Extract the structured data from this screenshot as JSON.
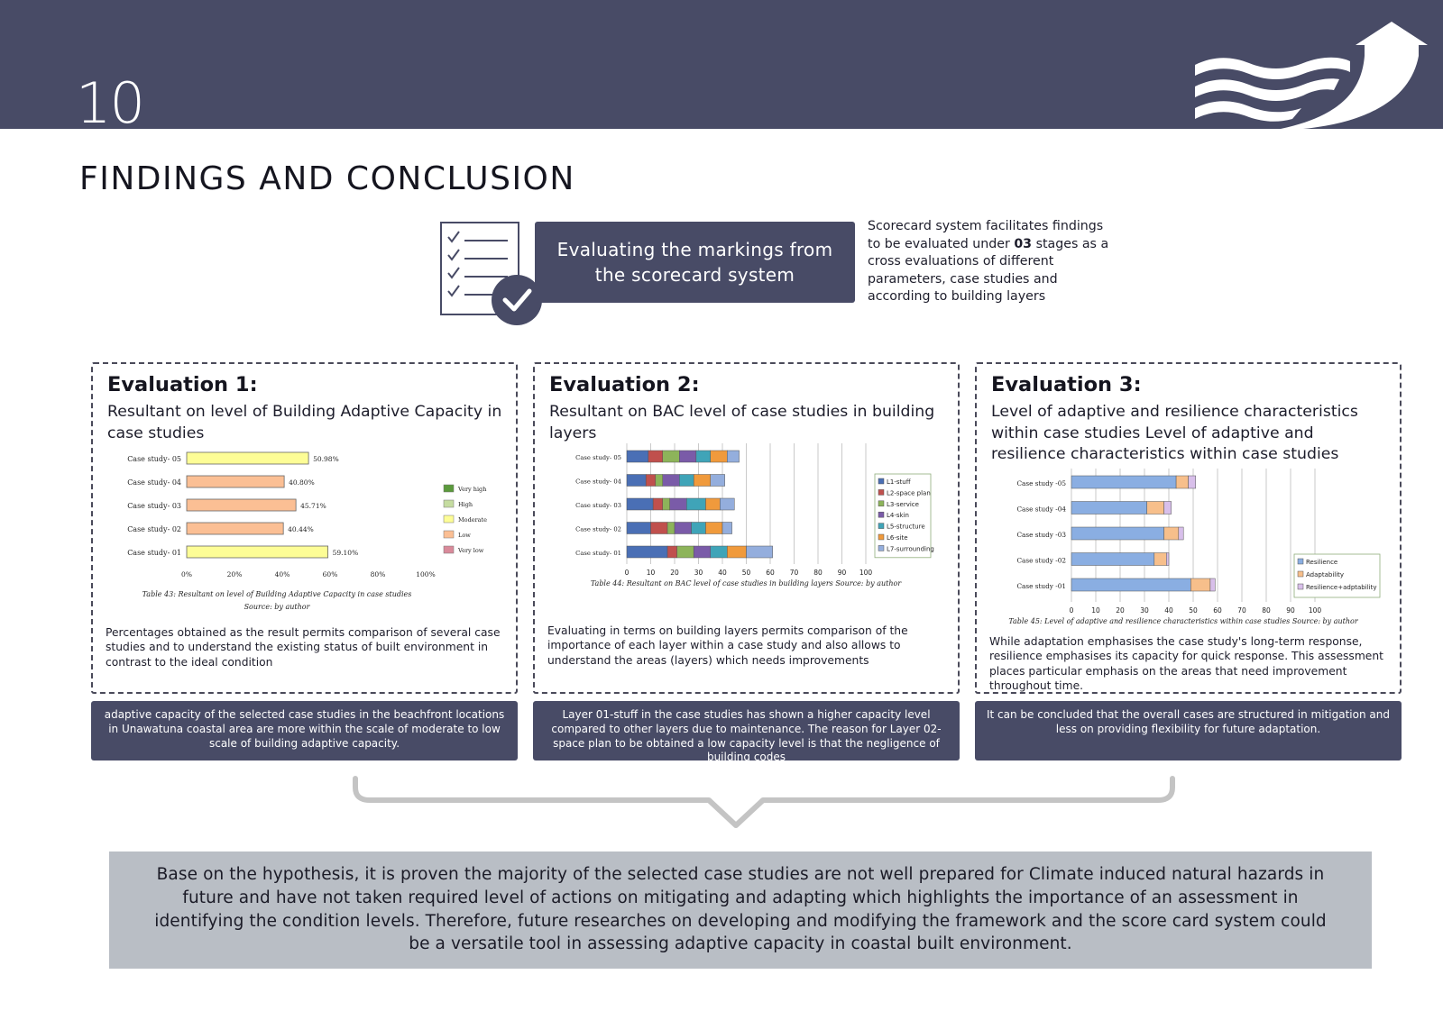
{
  "header": {
    "page_number": "10",
    "section_title": "FINDINGS AND CONCLUSION"
  },
  "intro": {
    "banner": "Evaluating the markings from the scorecard system",
    "note_pre": "Scorecard system facilitates findings to be evaluated under ",
    "note_bold": "03",
    "note_post": " stages as a cross evaluations of different parameters, case studies and according to building layers"
  },
  "evaluations": [
    {
      "title": "Evaluation 1:",
      "subtitle": "Resultant on level of Building Adaptive Capacity in case studies",
      "description": "Percentages obtained as the result permits comparison of several case studies and to understand the existing status of built environment in contrast to the ideal condition",
      "conclusion": "adaptive capacity of the selected case studies in the beachfront locations in Unawatuna coastal area are more within the scale of moderate to low scale of building adaptive capacity."
    },
    {
      "title": "Evaluation 2:",
      "subtitle": "Resultant on BAC level of case studies in building layers",
      "description": "Evaluating in terms on building layers permits comparison of the importance of each layer within a case study and also allows to understand the areas (layers) which needs improvements",
      "conclusion": "Layer 01-stuff in the case studies has shown a higher capacity level compared to other layers due to maintenance. The reason for Layer 02-space plan to be obtained a low capacity level is that the negligence of building codes"
    },
    {
      "title": "Evaluation 3:",
      "subtitle": "Level of adaptive and resilience characteristics within case studies Level of adaptive and resilience characteristics within case studies",
      "description": "While adaptation emphasises the case study's long-term response, resilience emphasises its capacity for quick response. This assessment places particular emphasis on the areas that need improvement throughout time.",
      "conclusion": "It can be concluded that the overall cases are structured in mitigation and less on providing flexibility for future adaptation."
    }
  ],
  "final_statement": "Base on the hypothesis, it is proven the majority of the selected case studies are not well prepared for Climate induced natural hazards in future and have not taken required level of actions on mitigating and adapting which highlights the importance of an assessment in identifying the condition levels. Therefore, future researches on developing and modifying the framework and the score card system could be a versatile tool in assessing adaptive capacity in coastal built environment.",
  "colors": {
    "navy": "#484b66",
    "panel_grey": "#b9bec5"
  },
  "chart_data": [
    {
      "type": "bar",
      "orientation": "horizontal",
      "categories": [
        "Case study- 05",
        "Case study- 04",
        "Case study- 03",
        "Case study- 02",
        "Case study- 01"
      ],
      "values": [
        50.98,
        40.8,
        45.71,
        40.44,
        59.1
      ],
      "value_labels": [
        "50.98%",
        "40.80%",
        "45.71%",
        "40.44%",
        "59.10%"
      ],
      "bar_levels": [
        "Moderate",
        "Low",
        "Low",
        "Low",
        "Moderate"
      ],
      "xlim": [
        0,
        100
      ],
      "x_ticks": [
        "0%",
        "20%",
        "40%",
        "60%",
        "80%",
        "100%"
      ],
      "legend": [
        {
          "label": "Very high",
          "color": "#5b9a3c"
        },
        {
          "label": "High",
          "color": "#c5dca0"
        },
        {
          "label": "Moderate",
          "color": "#fdfd96"
        },
        {
          "label": "Low",
          "color": "#fbbf94"
        },
        {
          "label": "Very low",
          "color": "#d98a9a"
        }
      ],
      "legend_position": "right",
      "caption_line1": "Table 43: Resultant on level of Building Adaptive Capacity in case studies",
      "caption_line2": "Source: by author"
    },
    {
      "type": "bar",
      "orientation": "horizontal-stacked",
      "categories": [
        "Case study- 05",
        "Case study- 04",
        "Case study- 03",
        "Case study- 02",
        "Case study- 01"
      ],
      "series": [
        {
          "name": "L1-stuff",
          "color": "#4a6fb5",
          "values": [
            9,
            8,
            11,
            10,
            17
          ]
        },
        {
          "name": "L2-space plan",
          "color": "#c0504d",
          "values": [
            6,
            4,
            4,
            7,
            4
          ]
        },
        {
          "name": "L3-service",
          "color": "#8db45a",
          "values": [
            7,
            3,
            3,
            3,
            7
          ]
        },
        {
          "name": "L4-skin",
          "color": "#7a5ba8",
          "values": [
            7,
            7,
            7,
            7,
            7
          ]
        },
        {
          "name": "L5-structure",
          "color": "#3fa4b8",
          "values": [
            6,
            6,
            8,
            6,
            7
          ]
        },
        {
          "name": "L6-site",
          "color": "#f09a3c",
          "values": [
            7,
            7,
            6,
            7,
            8
          ]
        },
        {
          "name": "L7-surrounding",
          "color": "#94aedd",
          "values": [
            5,
            6,
            6,
            4,
            11
          ]
        }
      ],
      "xlim": [
        0,
        100
      ],
      "x_ticks": [
        "0",
        "10",
        "20",
        "30",
        "40",
        "50",
        "60",
        "70",
        "80",
        "90",
        "100"
      ],
      "legend_position": "right",
      "caption": "Table 44: Resultant on BAC level of case studies in building layers Source: by author"
    },
    {
      "type": "bar",
      "orientation": "horizontal-stacked",
      "categories": [
        "Case study -05",
        "Case study -04",
        "Case study -03",
        "Case study -02",
        "Case study -01"
      ],
      "series": [
        {
          "name": "Resilience",
          "color": "#8aaee2",
          "values": [
            43,
            31,
            38,
            34,
            49
          ]
        },
        {
          "name": "Adaptability",
          "color": "#f7bf8b",
          "values": [
            5,
            7,
            6,
            5,
            8
          ]
        },
        {
          "name": "Resilience+adptability",
          "color": "#d8bfea",
          "values": [
            3,
            3,
            2,
            1,
            2
          ]
        }
      ],
      "xlim": [
        0,
        100
      ],
      "x_ticks": [
        "0",
        "10",
        "20",
        "30",
        "40",
        "50",
        "60",
        "70",
        "80",
        "90",
        "100"
      ],
      "legend_position": "bottom-right",
      "caption": "Table 45: Level of adaptive and resilience characteristics within case studies Source: by author"
    }
  ]
}
